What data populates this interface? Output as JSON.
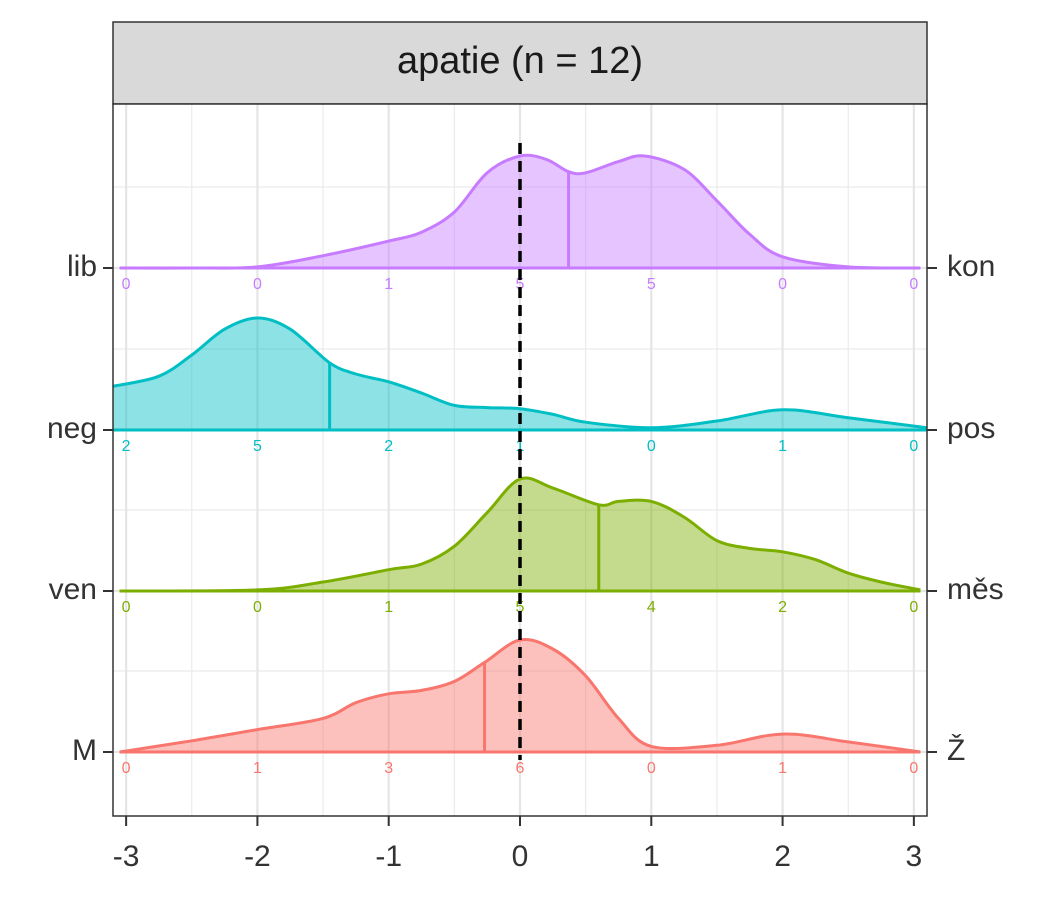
{
  "chart_data": {
    "type": "area",
    "title": "apatie (n = 12)",
    "x_ticks": [
      "-3",
      "-2",
      "-1",
      "0",
      "1",
      "2",
      "3"
    ],
    "x_tick_values": [
      -3,
      -2,
      -1,
      0,
      1,
      2,
      3
    ],
    "xlim": [
      -3.1,
      3.1
    ],
    "reference_line_x": 0,
    "grid": true,
    "series": [
      {
        "left_label": "lib",
        "right_label": "kon",
        "color": "#C77CFF",
        "mean": 0.37,
        "counts": [
          0,
          0,
          1,
          5,
          5,
          0,
          0
        ],
        "density": [
          [
            -3.05,
            0.0
          ],
          [
            -2.5,
            0.0
          ],
          [
            -2.0,
            0.01
          ],
          [
            -1.5,
            0.11
          ],
          [
            -1.0,
            0.24
          ],
          [
            -0.75,
            0.32
          ],
          [
            -0.5,
            0.5
          ],
          [
            -0.25,
            0.85
          ],
          [
            0.0,
            1.0
          ],
          [
            0.2,
            0.97
          ],
          [
            0.37,
            0.86
          ],
          [
            0.5,
            0.85
          ],
          [
            0.75,
            0.95
          ],
          [
            0.95,
            1.0
          ],
          [
            1.25,
            0.88
          ],
          [
            1.5,
            0.6
          ],
          [
            1.75,
            0.3
          ],
          [
            2.0,
            0.1
          ],
          [
            2.5,
            0.01
          ],
          [
            3.05,
            0.0
          ]
        ]
      },
      {
        "left_label": "neg",
        "right_label": "pos",
        "color": "#00BFC4",
        "mean": -1.45,
        "counts": [
          2,
          5,
          2,
          1,
          0,
          1,
          0
        ],
        "density": [
          [
            -3.1,
            0.39
          ],
          [
            -2.75,
            0.48
          ],
          [
            -2.5,
            0.67
          ],
          [
            -2.25,
            0.9
          ],
          [
            -2.0,
            1.0
          ],
          [
            -1.75,
            0.9
          ],
          [
            -1.45,
            0.6
          ],
          [
            -1.25,
            0.5
          ],
          [
            -1.0,
            0.43
          ],
          [
            -0.75,
            0.33
          ],
          [
            -0.5,
            0.22
          ],
          [
            -0.25,
            0.2
          ],
          [
            0.0,
            0.19
          ],
          [
            0.25,
            0.14
          ],
          [
            0.5,
            0.07
          ],
          [
            1.0,
            0.02
          ],
          [
            1.5,
            0.08
          ],
          [
            2.0,
            0.18
          ],
          [
            2.5,
            0.11
          ],
          [
            3.1,
            0.02
          ]
        ]
      },
      {
        "left_label": "ven",
        "right_label": "měs",
        "color": "#7CAE00",
        "mean": 0.6,
        "counts": [
          0,
          0,
          1,
          5,
          4,
          2,
          0
        ],
        "density": [
          [
            -3.05,
            0.0
          ],
          [
            -2.0,
            0.01
          ],
          [
            -1.5,
            0.08
          ],
          [
            -1.0,
            0.19
          ],
          [
            -0.75,
            0.24
          ],
          [
            -0.5,
            0.4
          ],
          [
            -0.25,
            0.7
          ],
          [
            0.0,
            1.0
          ],
          [
            0.25,
            0.92
          ],
          [
            0.6,
            0.77
          ],
          [
            0.75,
            0.8
          ],
          [
            1.0,
            0.8
          ],
          [
            1.25,
            0.66
          ],
          [
            1.5,
            0.45
          ],
          [
            1.75,
            0.38
          ],
          [
            2.0,
            0.35
          ],
          [
            2.25,
            0.28
          ],
          [
            2.5,
            0.16
          ],
          [
            2.75,
            0.08
          ],
          [
            3.05,
            0.01
          ]
        ]
      },
      {
        "left_label": "M",
        "right_label": "Ž",
        "color": "#F8766D",
        "mean": -0.27,
        "counts": [
          0,
          1,
          3,
          6,
          0,
          1,
          0
        ],
        "density": [
          [
            -3.05,
            0.0
          ],
          [
            -2.5,
            0.1
          ],
          [
            -2.0,
            0.2
          ],
          [
            -1.5,
            0.3
          ],
          [
            -1.25,
            0.44
          ],
          [
            -1.0,
            0.52
          ],
          [
            -0.75,
            0.55
          ],
          [
            -0.5,
            0.63
          ],
          [
            -0.27,
            0.8
          ],
          [
            0.0,
            1.0
          ],
          [
            0.25,
            0.92
          ],
          [
            0.5,
            0.68
          ],
          [
            0.75,
            0.3
          ],
          [
            1.0,
            0.05
          ],
          [
            1.5,
            0.06
          ],
          [
            2.0,
            0.16
          ],
          [
            2.5,
            0.09
          ],
          [
            3.05,
            0.0
          ]
        ]
      }
    ]
  }
}
